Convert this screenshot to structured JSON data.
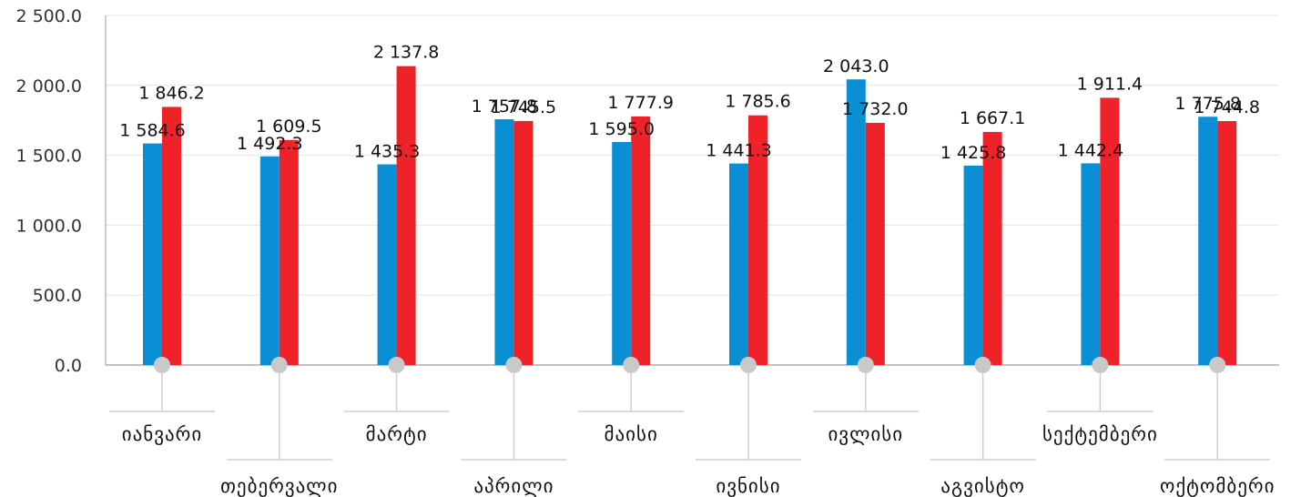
{
  "chart_data": {
    "type": "bar",
    "categories": [
      "იანვარი",
      "თებერვალი",
      "მარტი",
      "აპრილი",
      "მაისი",
      "ივნისი",
      "ივლისი",
      "აგვისტო",
      "სექტემბერი",
      "ოქტომბერი"
    ],
    "category_label_rows": [
      "upper",
      "lower",
      "upper",
      "lower",
      "upper",
      "lower",
      "upper",
      "lower",
      "upper",
      "lower"
    ],
    "series": [
      {
        "color": "#0a8fd4",
        "values": [
          1584.6,
          1492.3,
          1435.3,
          1757.8,
          1595.0,
          1441.3,
          2043.0,
          1425.8,
          1442.4,
          1775.8
        ],
        "labels": [
          "1 584.6",
          "1 492.3",
          "1 435.3",
          "1 757.8",
          "1 595.0",
          "1 441.3",
          "2 043.0",
          "1 425.8",
          "1 442.4",
          "1 775.8"
        ]
      },
      {
        "color": "#ee2228",
        "values": [
          1846.2,
          1609.5,
          2137.8,
          1745.5,
          1777.9,
          1785.6,
          1732.0,
          1667.1,
          1911.4,
          1744.8
        ],
        "labels": [
          "1 846.2",
          "1 609.5",
          "2 137.8",
          "1 745.5",
          "1 777.9",
          "1 785.6",
          "1 732.0",
          "1 667.1",
          "1 911.4",
          "1 744.8"
        ]
      }
    ],
    "yticks": [
      0,
      500,
      1000,
      1500,
      2000,
      2500
    ],
    "ytick_labels": [
      "0.0",
      "500.0",
      "1 000.0",
      "1 500.0",
      "2 000.0",
      "2 500.0"
    ],
    "ylim": [
      0,
      2500
    ],
    "grid": true,
    "legend": "none"
  }
}
